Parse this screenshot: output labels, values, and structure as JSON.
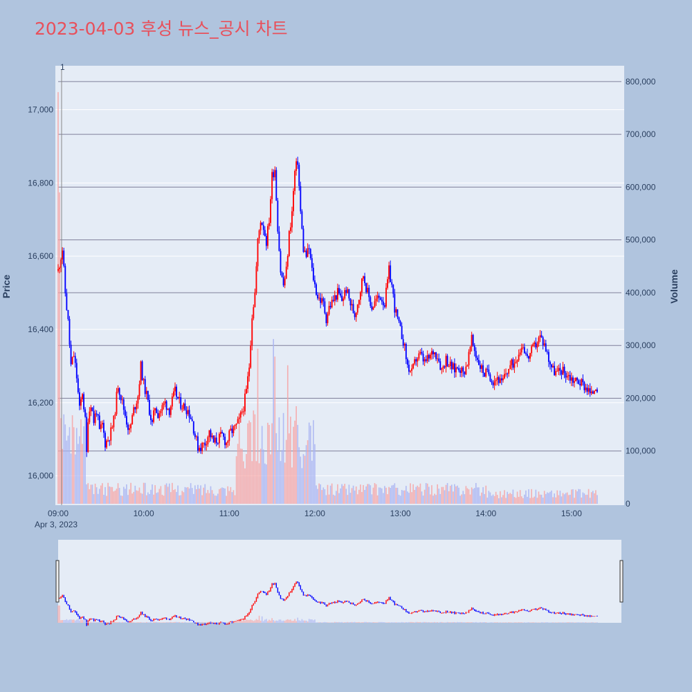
{
  "title": "2023-04-03 후성 뉴스_공시 차트",
  "colors": {
    "up": "#ff0000",
    "down": "#0000ff",
    "title": "#e8505b",
    "plot_bg": "#e5ecf6",
    "paper_bg": "#b0c4de"
  },
  "annotation_label": "1",
  "chart_data": {
    "type": "candlestick",
    "title": "2023-04-03 후성 뉴스_공시 차트",
    "y_label": "Price",
    "y2_label": "Volume",
    "date_label": "Apr 3, 2023",
    "x_ticks": [
      "09:00",
      "10:00",
      "11:00",
      "12:00",
      "13:00",
      "14:00",
      "15:00"
    ],
    "y_ticks": [
      "16,000",
      "16,200",
      "16,400",
      "16,600",
      "16,800",
      "17,000"
    ],
    "y2_ticks": [
      "0",
      "100,000",
      "200,000",
      "300,000",
      "400,000",
      "500,000",
      "600,000",
      "700,000",
      "800,000"
    ],
    "x_range_minutes": [
      0,
      395
    ],
    "y_range": [
      15920,
      17120
    ],
    "y2_range": [
      0,
      830000
    ],
    "close_path": [
      [
        0,
        16560
      ],
      [
        3,
        16620
      ],
      [
        5,
        16500
      ],
      [
        7,
        16420
      ],
      [
        9,
        16300
      ],
      [
        11,
        16330
      ],
      [
        13,
        16270
      ],
      [
        15,
        16180
      ],
      [
        17,
        16230
      ],
      [
        19,
        16150
      ],
      [
        20,
        16060
      ],
      [
        21,
        16160
      ],
      [
        23,
        16200
      ],
      [
        25,
        16150
      ],
      [
        27,
        16180
      ],
      [
        29,
        16120
      ],
      [
        31,
        16140
      ],
      [
        33,
        16090
      ],
      [
        35,
        16100
      ],
      [
        37,
        16120
      ],
      [
        39,
        16150
      ],
      [
        42,
        16250
      ],
      [
        45,
        16200
      ],
      [
        48,
        16150
      ],
      [
        50,
        16120
      ],
      [
        53,
        16180
      ],
      [
        56,
        16220
      ],
      [
        58,
        16300
      ],
      [
        60,
        16250
      ],
      [
        62,
        16220
      ],
      [
        64,
        16180
      ],
      [
        66,
        16140
      ],
      [
        68,
        16190
      ],
      [
        70,
        16170
      ],
      [
        72,
        16180
      ],
      [
        75,
        16200
      ],
      [
        78,
        16180
      ],
      [
        82,
        16230
      ],
      [
        85,
        16200
      ],
      [
        88,
        16190
      ],
      [
        91,
        16180
      ],
      [
        94,
        16150
      ],
      [
        96,
        16110
      ],
      [
        98,
        16080
      ],
      [
        100,
        16080
      ],
      [
        103,
        16090
      ],
      [
        106,
        16120
      ],
      [
        109,
        16090
      ],
      [
        112,
        16100
      ],
      [
        115,
        16110
      ],
      [
        118,
        16090
      ],
      [
        121,
        16120
      ],
      [
        124,
        16130
      ],
      [
        127,
        16150
      ],
      [
        130,
        16190
      ],
      [
        132,
        16230
      ],
      [
        134,
        16300
      ],
      [
        136,
        16440
      ],
      [
        138,
        16500
      ],
      [
        140,
        16640
      ],
      [
        142,
        16700
      ],
      [
        144,
        16680
      ],
      [
        146,
        16640
      ],
      [
        148,
        16700
      ],
      [
        150,
        16820
      ],
      [
        152,
        16840
      ],
      [
        154,
        16680
      ],
      [
        156,
        16560
      ],
      [
        158,
        16520
      ],
      [
        160,
        16560
      ],
      [
        162,
        16660
      ],
      [
        164,
        16720
      ],
      [
        166,
        16830
      ],
      [
        168,
        16860
      ],
      [
        170,
        16720
      ],
      [
        172,
        16620
      ],
      [
        174,
        16600
      ],
      [
        176,
        16620
      ],
      [
        178,
        16560
      ],
      [
        180,
        16520
      ],
      [
        182,
        16490
      ],
      [
        184,
        16480
      ],
      [
        186,
        16470
      ],
      [
        188,
        16430
      ],
      [
        190,
        16460
      ],
      [
        193,
        16480
      ],
      [
        196,
        16500
      ],
      [
        199,
        16480
      ],
      [
        202,
        16510
      ],
      [
        205,
        16470
      ],
      [
        208,
        16440
      ],
      [
        211,
        16490
      ],
      [
        214,
        16550
      ],
      [
        217,
        16500
      ],
      [
        220,
        16460
      ],
      [
        223,
        16480
      ],
      [
        226,
        16490
      ],
      [
        229,
        16470
      ],
      [
        232,
        16560
      ],
      [
        234,
        16520
      ],
      [
        236,
        16460
      ],
      [
        239,
        16410
      ],
      [
        242,
        16370
      ],
      [
        245,
        16300
      ],
      [
        248,
        16280
      ],
      [
        251,
        16320
      ],
      [
        254,
        16330
      ],
      [
        257,
        16310
      ],
      [
        260,
        16320
      ],
      [
        263,
        16340
      ],
      [
        266,
        16330
      ],
      [
        269,
        16290
      ],
      [
        272,
        16320
      ],
      [
        275,
        16300
      ],
      [
        278,
        16290
      ],
      [
        281,
        16300
      ],
      [
        284,
        16280
      ],
      [
        287,
        16310
      ],
      [
        290,
        16370
      ],
      [
        293,
        16330
      ],
      [
        296,
        16300
      ],
      [
        299,
        16280
      ],
      [
        302,
        16280
      ],
      [
        305,
        16260
      ],
      [
        308,
        16270
      ],
      [
        311,
        16250
      ],
      [
        314,
        16280
      ],
      [
        317,
        16300
      ],
      [
        320,
        16310
      ],
      [
        323,
        16340
      ],
      [
        326,
        16360
      ],
      [
        329,
        16320
      ],
      [
        332,
        16340
      ],
      [
        335,
        16360
      ],
      [
        338,
        16380
      ],
      [
        341,
        16360
      ],
      [
        344,
        16320
      ],
      [
        347,
        16290
      ],
      [
        350,
        16280
      ],
      [
        353,
        16290
      ],
      [
        356,
        16280
      ],
      [
        359,
        16270
      ],
      [
        362,
        16260
      ],
      [
        365,
        16260
      ],
      [
        368,
        16250
      ],
      [
        371,
        16240
      ],
      [
        374,
        16220
      ],
      [
        377,
        16250
      ],
      [
        378,
        16240
      ]
    ]
  }
}
